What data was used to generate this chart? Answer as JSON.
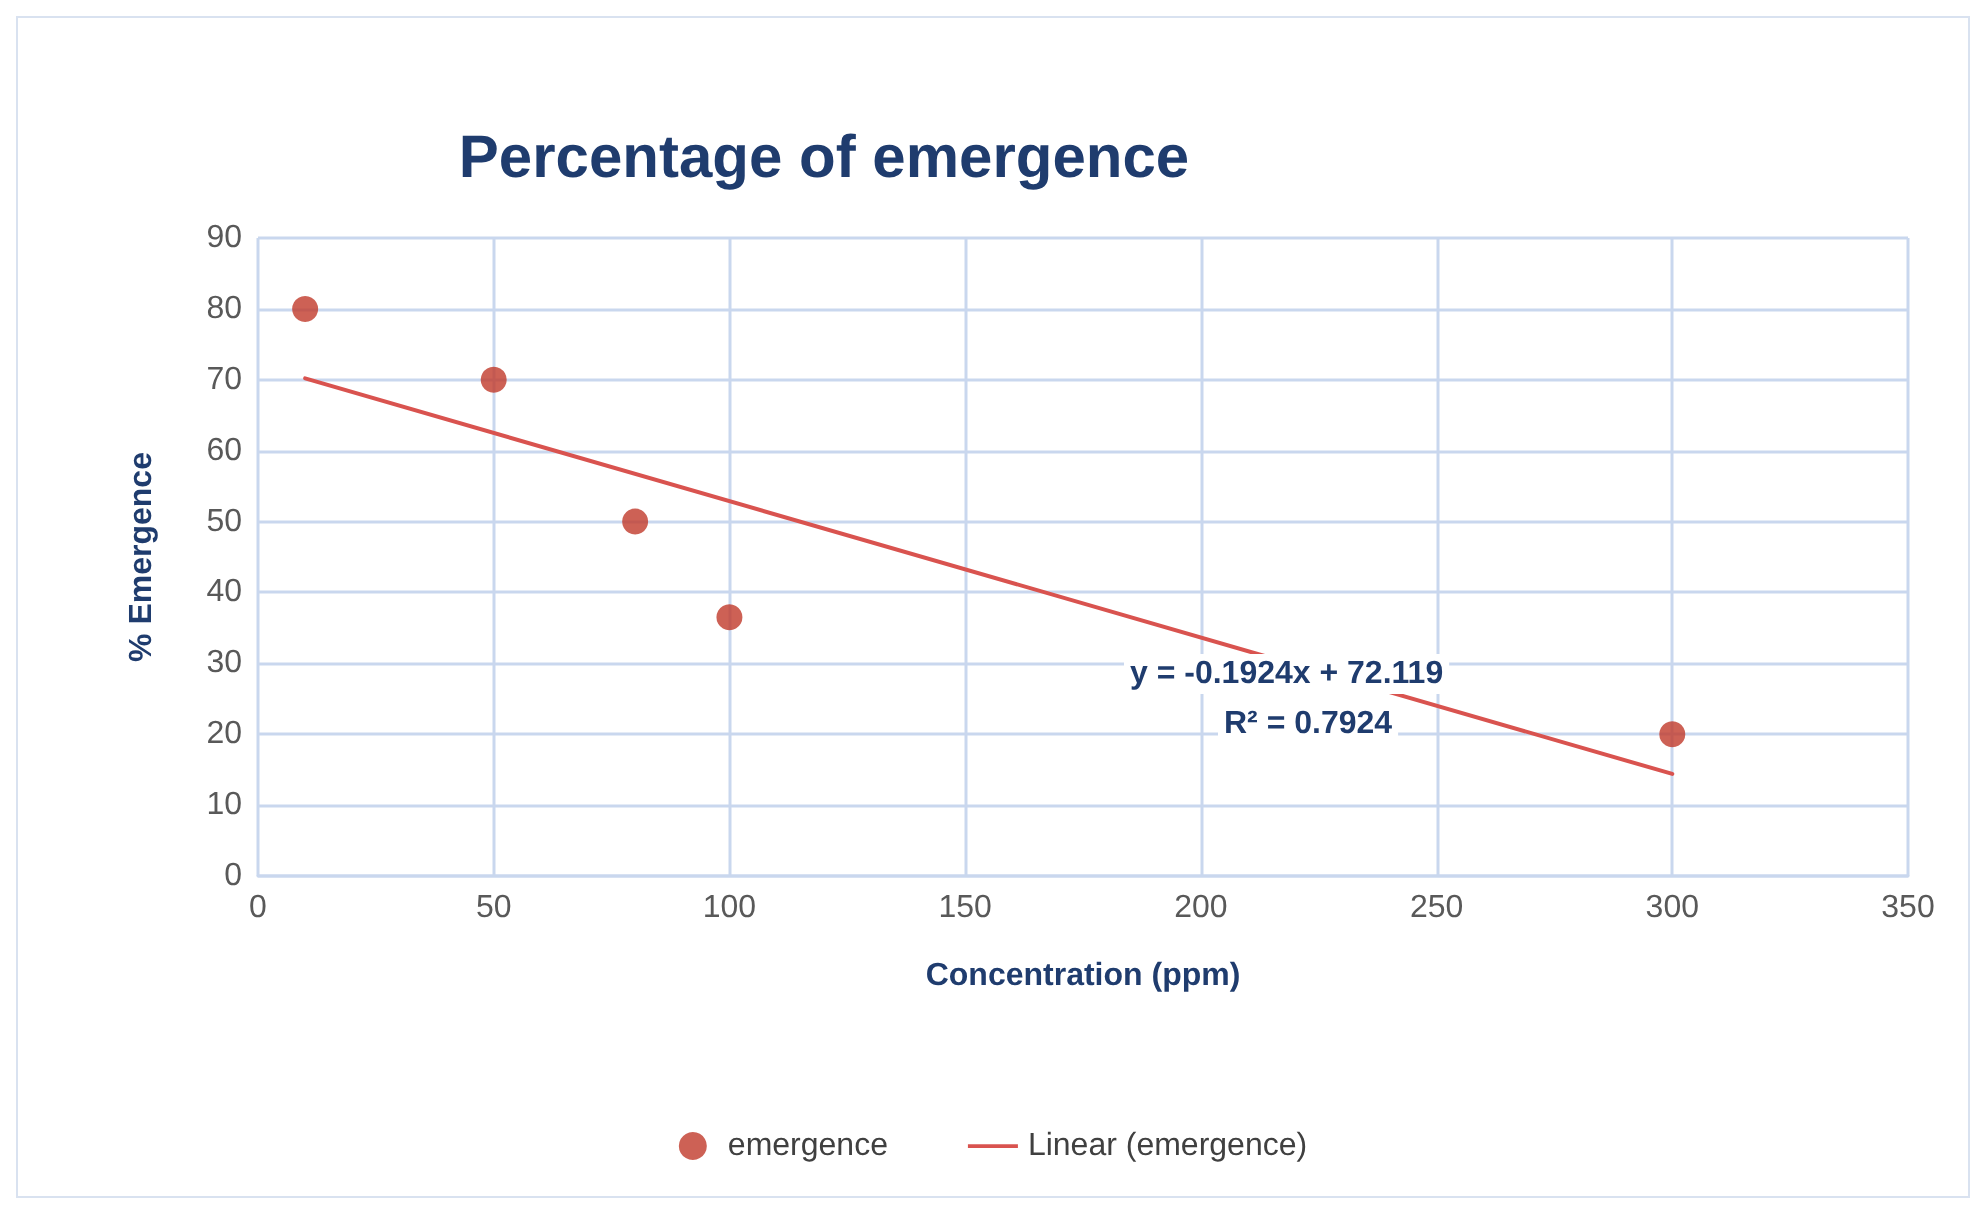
{
  "chart_data": {
    "type": "scatter",
    "title": "Percentage of emergence",
    "xlabel": "Concentration (ppm)",
    "ylabel": "% Emergence",
    "series": [
      {
        "name": "emergence",
        "color": "#c0392b",
        "x": [
          10,
          50,
          80,
          100,
          300
        ],
        "values": [
          80,
          70,
          50,
          36.5,
          20
        ]
      },
      {
        "name": "Linear (emergence)",
        "type": "line",
        "marker": "none",
        "color": "#d9534f",
        "x": [
          10,
          300
        ],
        "values": [
          70.2,
          14.4
        ]
      }
    ],
    "annotations": [
      "y = -0.1924x + 72.119",
      "R² = 0.7924"
    ],
    "xlim": [
      0,
      350
    ],
    "xticks": [
      0,
      50,
      100,
      150,
      200,
      250,
      300,
      350
    ],
    "ylim": [
      0,
      90
    ],
    "yticks": [
      0,
      10,
      20,
      30,
      40,
      50,
      60,
      70,
      80,
      90
    ],
    "grid": true,
    "legend": "bottom",
    "marker": "circle",
    "line_style": "solid"
  }
}
